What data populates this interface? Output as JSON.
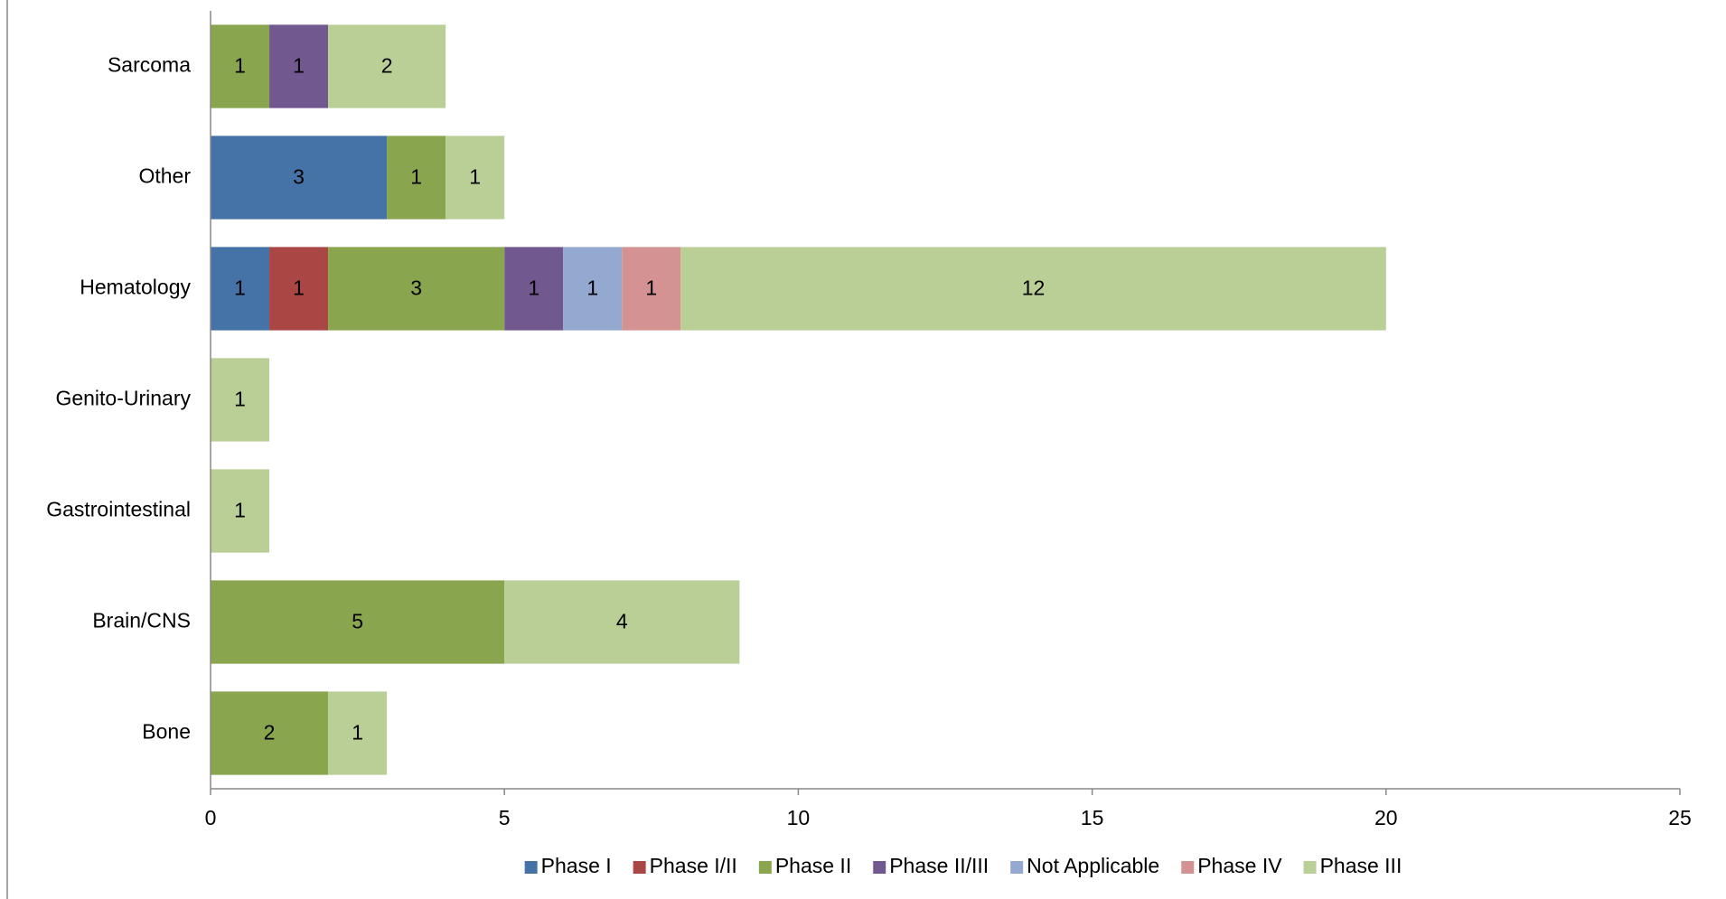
{
  "chart_data": {
    "type": "stacked_barh",
    "categories": [
      "Sarcoma",
      "Other",
      "Hematology",
      "Genito-Urinary",
      "Gastrointestinal",
      "Brain/CNS",
      "Bone"
    ],
    "series": [
      {
        "name": "Phase I",
        "color": "#4572a7",
        "values": [
          null,
          3,
          1,
          null,
          null,
          null,
          null
        ]
      },
      {
        "name": "Phase I/II",
        "color": "#aa4643",
        "values": [
          null,
          null,
          1,
          null,
          null,
          null,
          null
        ]
      },
      {
        "name": "Phase II",
        "color": "#89a54e",
        "values": [
          1,
          1,
          3,
          null,
          null,
          5,
          2
        ]
      },
      {
        "name": "Phase II/III",
        "color": "#71588f",
        "values": [
          1,
          null,
          1,
          null,
          null,
          null,
          null
        ]
      },
      {
        "name": "Not Applicable",
        "color": "#94a9d0",
        "values": [
          null,
          null,
          1,
          null,
          null,
          null,
          null
        ]
      },
      {
        "name": "Phase IV",
        "color": "#d59292",
        "values": [
          null,
          null,
          1,
          null,
          null,
          null,
          null
        ]
      },
      {
        "name": "Phase III",
        "color": "#bacf96",
        "values": [
          2,
          1,
          12,
          1,
          1,
          4,
          1
        ]
      }
    ],
    "xlim": [
      0,
      25
    ],
    "xticks": [
      0,
      5,
      10,
      15,
      20,
      25
    ],
    "legend": "bottom",
    "grid": false
  }
}
